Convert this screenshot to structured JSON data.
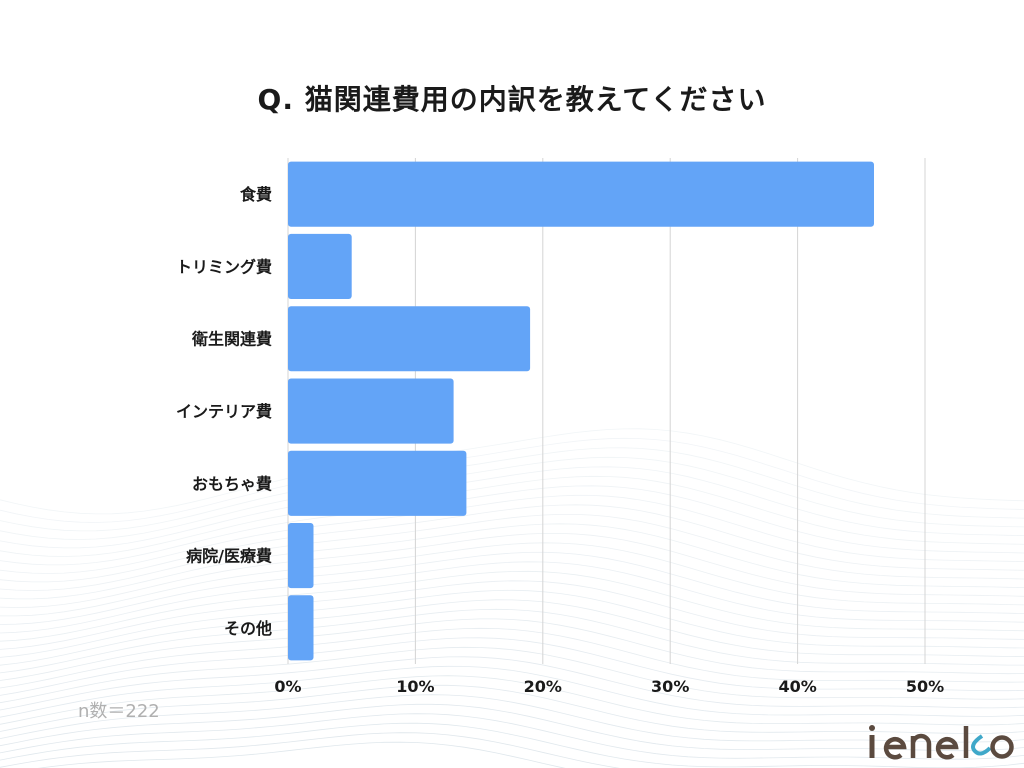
{
  "chart_data": {
    "type": "bar",
    "orientation": "horizontal",
    "title": "Q. 猫関連費用の内訳を教えてください",
    "categories": [
      "食費",
      "トリミング費",
      "衛生関連費",
      "インテリア費",
      "おもちゃ費",
      "病院/医療費",
      "その他"
    ],
    "values": [
      46,
      5,
      19,
      13,
      14,
      2,
      2
    ],
    "xlim": [
      0,
      50
    ],
    "ticks": [
      0,
      10,
      20,
      30,
      40,
      50
    ],
    "tick_labels": [
      "0%",
      "10%",
      "20%",
      "30%",
      "40%",
      "50%"
    ],
    "grid": true,
    "bar_color": "#63a4f7",
    "grid_color": "#d4d4d4",
    "note": "n数＝222"
  },
  "brand": {
    "logo_text": "ieneko"
  },
  "colors": {
    "title": "#1a1a1a",
    "wave_lines": "#c9d6df",
    "logo": "#5b4a3f",
    "note": "#b0b0b0"
  }
}
